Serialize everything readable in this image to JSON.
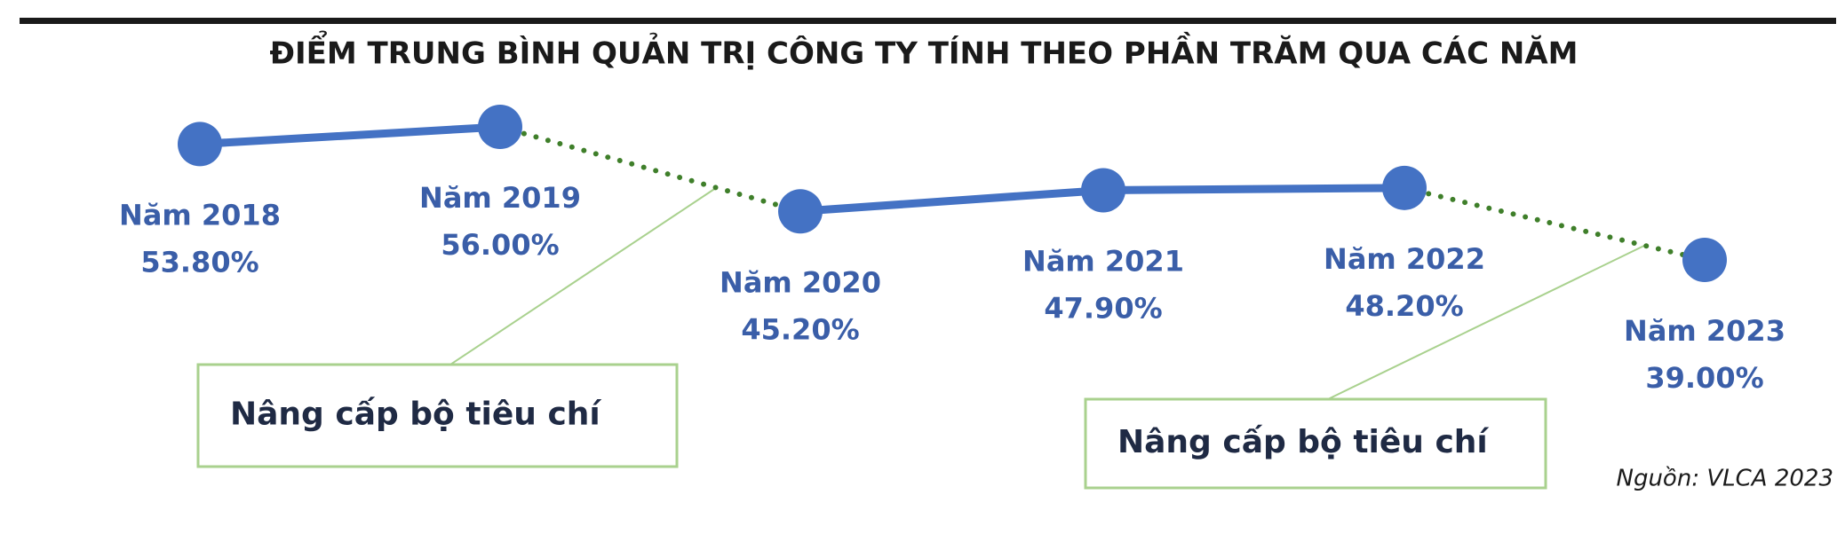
{
  "chart_data": {
    "type": "line",
    "title": "ĐIỂM TRUNG BÌNH QUẢN TRỊ CÔNG TY TÍNH THEO PHẦN TRĂM QUA CÁC NĂM",
    "categories": [
      "Năm 2018",
      "Năm 2019",
      "Năm 2020",
      "Năm 2021",
      "Năm 2022",
      "Năm 2023"
    ],
    "values": [
      53.8,
      56.0,
      45.2,
      47.9,
      48.2,
      39.0
    ],
    "value_labels": [
      "53.80%",
      "56.00%",
      "45.20%",
      "47.90%",
      "48.20%",
      "39.00%"
    ],
    "color": "#4472c4",
    "dotted_color": "#3f7f2a",
    "segment_styles": [
      "solid",
      "dotted",
      "solid",
      "solid",
      "dotted"
    ],
    "annotations": [
      "Nâng cấp bộ tiêu chí",
      "Nâng cấp bộ tiêu chí"
    ],
    "source": "Nguồn: VLCA 2023"
  }
}
